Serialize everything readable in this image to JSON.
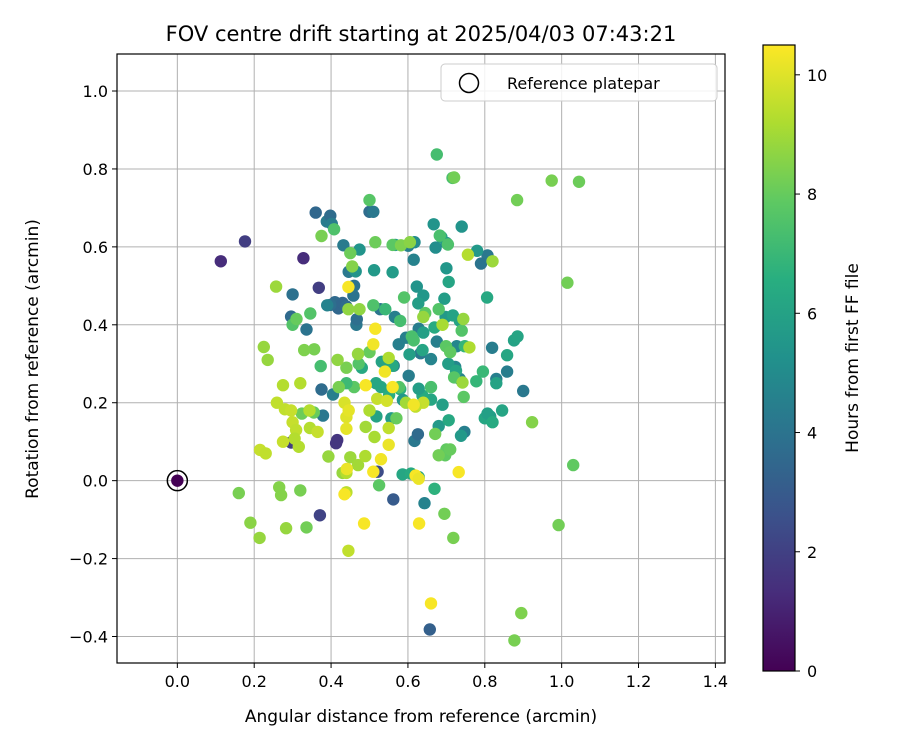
{
  "chart_data": {
    "type": "scatter",
    "title": "FOV centre drift starting at 2025/04/03 07:43:21",
    "xlabel": "Angular distance from reference (arcmin)",
    "ylabel": "Rotation from reference (arcmin)",
    "colorbar_label": "Hours from first FF file",
    "xlim": [
      -0.157,
      1.425
    ],
    "ylim": [
      -0.468,
      1.095
    ],
    "xticks": [
      0.0,
      0.2,
      0.4,
      0.6,
      0.8,
      1.0,
      1.2,
      1.4
    ],
    "yticks": [
      -0.4,
      -0.2,
      0.0,
      0.2,
      0.4,
      0.6,
      0.8,
      1.0
    ],
    "xtick_labels": [
      "0.0",
      "0.2",
      "0.4",
      "0.6",
      "0.8",
      "1.0",
      "1.2",
      "1.4"
    ],
    "ytick_labels": [
      "−0.4",
      "−0.2",
      "0.0",
      "0.2",
      "0.4",
      "0.6",
      "0.8",
      "1.0"
    ],
    "colorbar_range": [
      0,
      10.5
    ],
    "colorbar_ticks": [
      0,
      2,
      4,
      6,
      8,
      10
    ],
    "colorbar_tick_labels": [
      "0",
      "2",
      "4",
      "6",
      "8",
      "10"
    ],
    "colormap": "viridis",
    "grid": true,
    "legend": {
      "placement": "top-right",
      "entries": [
        "Reference platepar"
      ]
    },
    "reference_point": {
      "x": 0.0,
      "y": 0.0,
      "hours": 0.0
    },
    "points": [
      [
        0.113,
        0.563,
        1.3
      ],
      [
        0.176,
        0.614,
        1.9
      ],
      [
        0.328,
        0.571,
        1.3
      ],
      [
        0.368,
        0.495,
        1.9
      ],
      [
        0.296,
        0.098,
        1.9
      ],
      [
        0.371,
        -0.089,
        2.1
      ],
      [
        0.416,
        0.104,
        1.6
      ],
      [
        0.413,
        0.096,
        1.6
      ],
      [
        0.521,
        0.023,
        2.4
      ],
      [
        0.562,
        -0.048,
        3.0
      ],
      [
        0.657,
        -0.382,
        3.2
      ],
      [
        0.36,
        0.688,
        3.5
      ],
      [
        0.389,
        0.665,
        4.3
      ],
      [
        0.398,
        0.68,
        3.7
      ],
      [
        0.402,
        0.659,
        4.4
      ],
      [
        0.432,
        0.604,
        4.3
      ],
      [
        0.41,
        0.458,
        3.6
      ],
      [
        0.419,
        0.442,
        3.5
      ],
      [
        0.43,
        0.456,
        3.5
      ],
      [
        0.44,
        0.447,
        3.7
      ],
      [
        0.398,
        0.451,
        3.8
      ],
      [
        0.39,
        0.45,
        4.6
      ],
      [
        0.296,
        0.421,
        3.6
      ],
      [
        0.3,
        0.478,
        3.9
      ],
      [
        0.336,
        0.388,
        4.0
      ],
      [
        0.375,
        0.234,
        3.7
      ],
      [
        0.379,
        0.167,
        4.2
      ],
      [
        0.405,
        0.221,
        4.5
      ],
      [
        0.446,
        0.536,
        4.2
      ],
      [
        0.46,
        0.5,
        4.0
      ],
      [
        0.458,
        0.475,
        4.0
      ],
      [
        0.466,
        0.4,
        4.2
      ],
      [
        0.467,
        0.414,
        3.8
      ],
      [
        0.5,
        0.69,
        3.7
      ],
      [
        0.51,
        0.69,
        4.2
      ],
      [
        0.528,
        0.44,
        4.1
      ],
      [
        0.566,
        0.42,
        4.5
      ],
      [
        0.601,
        0.603,
        4.5
      ],
      [
        0.617,
        0.612,
        5.0
      ],
      [
        0.615,
        0.567,
        4.6
      ],
      [
        0.576,
        0.35,
        4.5
      ],
      [
        0.595,
        0.367,
        4.5
      ],
      [
        0.633,
        0.327,
        4.2
      ],
      [
        0.628,
        0.39,
        4.4
      ],
      [
        0.563,
        0.295,
        4.4
      ],
      [
        0.66,
        0.312,
        4.7
      ],
      [
        0.675,
        0.357,
        4.5
      ],
      [
        0.602,
        0.269,
        4.4
      ],
      [
        0.617,
        0.102,
        4.2
      ],
      [
        0.626,
        0.119,
        3.6
      ],
      [
        0.643,
        -0.058,
        4.6
      ],
      [
        0.727,
        0.345,
        4.8
      ],
      [
        0.735,
        0.261,
        4.7
      ],
      [
        0.723,
        0.292,
        4.8
      ],
      [
        0.807,
        0.578,
        4.2
      ],
      [
        0.79,
        0.557,
        4.0
      ],
      [
        0.819,
        0.341,
        4.4
      ],
      [
        0.83,
        0.261,
        4.5
      ],
      [
        0.9,
        0.23,
        4.2
      ],
      [
        0.858,
        0.28,
        4.4
      ],
      [
        0.7,
        0.61,
        4.9
      ],
      [
        0.747,
        0.125,
        4.5
      ],
      [
        0.474,
        0.593,
        5.4
      ],
      [
        0.464,
        0.537,
        5.4
      ],
      [
        0.512,
        0.54,
        5.6
      ],
      [
        0.56,
        0.535,
        5.7
      ],
      [
        0.567,
        0.605,
        5.8
      ],
      [
        0.623,
        0.498,
        5.4
      ],
      [
        0.64,
        0.475,
        5.5
      ],
      [
        0.627,
        0.455,
        5.8
      ],
      [
        0.64,
        0.38,
        5.9
      ],
      [
        0.667,
        0.658,
        5.4
      ],
      [
        0.687,
        0.625,
        6.2
      ],
      [
        0.672,
        0.598,
        5.1
      ],
      [
        0.703,
        0.607,
        5.4
      ],
      [
        0.74,
        0.652,
        5.4
      ],
      [
        0.7,
        0.545,
        5.5
      ],
      [
        0.706,
        0.51,
        6.1
      ],
      [
        0.695,
        0.467,
        5.8
      ],
      [
        0.698,
        0.42,
        5.6
      ],
      [
        0.705,
        0.3,
        5.8
      ],
      [
        0.725,
        0.282,
        6.1
      ],
      [
        0.717,
        0.424,
        6.0
      ],
      [
        0.735,
        0.41,
        6.0
      ],
      [
        0.69,
        0.195,
        5.9
      ],
      [
        0.68,
        0.14,
        5.6
      ],
      [
        0.706,
        0.155,
        6.3
      ],
      [
        0.738,
        0.115,
        5.6
      ],
      [
        0.66,
        0.208,
        6.2
      ],
      [
        0.638,
        0.218,
        6.4
      ],
      [
        0.628,
        0.236,
        5.8
      ],
      [
        0.58,
        0.235,
        6.6
      ],
      [
        0.587,
        0.207,
        5.5
      ],
      [
        0.551,
        0.22,
        6.5
      ],
      [
        0.557,
        0.16,
        5.7
      ],
      [
        0.517,
        0.25,
        6.2
      ],
      [
        0.518,
        0.165,
        6.0
      ],
      [
        0.532,
        0.305,
        6.0
      ],
      [
        0.53,
        0.24,
        6.2
      ],
      [
        0.48,
        0.29,
        6.3
      ],
      [
        0.56,
        0.295,
        6.3
      ],
      [
        0.604,
        0.324,
        5.9
      ],
      [
        0.638,
        0.335,
        6.1
      ],
      [
        0.669,
        0.393,
        6.4
      ],
      [
        0.586,
        0.016,
        6.2
      ],
      [
        0.608,
        0.018,
        6.4
      ],
      [
        0.628,
        0.009,
        6.1
      ],
      [
        0.669,
        -0.021,
        6.7
      ],
      [
        0.78,
        0.59,
        5.6
      ],
      [
        0.806,
        0.47,
        6.3
      ],
      [
        0.814,
        0.165,
        5.8
      ],
      [
        0.8,
        0.16,
        6.2
      ],
      [
        0.807,
        0.172,
        5.9
      ],
      [
        0.82,
        0.15,
        6.4
      ],
      [
        0.845,
        0.18,
        6.1
      ],
      [
        0.83,
        0.25,
        6.0
      ],
      [
        0.858,
        0.322,
        6.2
      ],
      [
        0.876,
        0.36,
        6.0
      ],
      [
        0.885,
        0.37,
        6.1
      ],
      [
        0.748,
        0.345,
        6.9
      ],
      [
        0.778,
        0.255,
        6.9
      ],
      [
        0.795,
        0.28,
        7.0
      ],
      [
        0.51,
        0.45,
        7.5
      ],
      [
        0.541,
        0.44,
        7.0
      ],
      [
        0.58,
        0.41,
        7.3
      ],
      [
        0.59,
        0.47,
        7.6
      ],
      [
        0.56,
        0.605,
        7.8
      ],
      [
        0.61,
        0.37,
        7.4
      ],
      [
        0.645,
        0.43,
        7.8
      ],
      [
        0.615,
        0.36,
        7.4
      ],
      [
        0.68,
        0.44,
        7.6
      ],
      [
        0.675,
        0.837,
        7.3
      ],
      [
        0.716,
        0.777,
        7.4
      ],
      [
        0.683,
        0.629,
        7.4
      ],
      [
        0.704,
        0.606,
        7.5
      ],
      [
        0.66,
        0.24,
        7.4
      ],
      [
        0.699,
        0.345,
        7.8
      ],
      [
        0.71,
        0.33,
        7.9
      ],
      [
        0.72,
        0.265,
        7.7
      ],
      [
        0.74,
        0.385,
        7.6
      ],
      [
        0.745,
        0.215,
        7.8
      ],
      [
        0.7,
        0.08,
        7.9
      ],
      [
        0.695,
        -0.085,
        8.2
      ],
      [
        0.718,
        -0.147,
        8.3
      ],
      [
        0.697,
        0.065,
        7.9
      ],
      [
        0.71,
        0.08,
        8.0
      ],
      [
        0.68,
        0.065,
        8.2
      ],
      [
        0.671,
        0.12,
        8.2
      ],
      [
        0.525,
        -0.012,
        7.8
      ],
      [
        0.57,
        0.16,
        8.0
      ],
      [
        0.577,
        0.24,
        7.6
      ],
      [
        0.5,
        0.33,
        8.0
      ],
      [
        0.472,
        0.3,
        7.6
      ],
      [
        0.46,
        0.24,
        7.8
      ],
      [
        0.44,
        0.25,
        7.1
      ],
      [
        0.44,
        0.29,
        8.3
      ],
      [
        0.42,
        0.24,
        8.3
      ],
      [
        0.373,
        0.294,
        7.3
      ],
      [
        0.356,
        0.337,
        8.3
      ],
      [
        0.346,
        0.429,
        7.6
      ],
      [
        0.33,
        0.335,
        8.4
      ],
      [
        0.3,
        0.4,
        7.6
      ],
      [
        0.31,
        0.415,
        8.0
      ],
      [
        0.324,
        0.172,
        8.1
      ],
      [
        0.355,
        0.175,
        8.0
      ],
      [
        0.32,
        -0.025,
        8.3
      ],
      [
        0.336,
        -0.12,
        8.2
      ],
      [
        0.265,
        -0.017,
        8.5
      ],
      [
        0.27,
        -0.037,
        8.5
      ],
      [
        0.16,
        -0.032,
        8.3
      ],
      [
        0.19,
        -0.108,
        8.6
      ],
      [
        0.214,
        -0.147,
        8.8
      ],
      [
        0.283,
        -0.122,
        8.8
      ],
      [
        0.408,
        0.645,
        7.5
      ],
      [
        0.375,
        0.628,
        8.3
      ],
      [
        0.45,
        0.584,
        8.1
      ],
      [
        0.515,
        0.612,
        8.1
      ],
      [
        0.5,
        0.72,
        7.7
      ],
      [
        0.582,
        0.604,
        8.4
      ],
      [
        0.605,
        0.612,
        8.6
      ],
      [
        0.72,
        0.778,
        8.2
      ],
      [
        0.884,
        0.72,
        8.2
      ],
      [
        0.974,
        0.77,
        8.3
      ],
      [
        1.045,
        0.767,
        8.1
      ],
      [
        1.015,
        0.508,
        8.2
      ],
      [
        1.03,
        0.04,
        7.9
      ],
      [
        0.992,
        -0.114,
        8.2
      ],
      [
        0.923,
        0.15,
        8.5
      ],
      [
        0.895,
        -0.34,
        8.4
      ],
      [
        0.877,
        -0.41,
        8.3
      ],
      [
        0.756,
        0.58,
        9.3
      ],
      [
        0.82,
        0.563,
        8.9
      ],
      [
        0.744,
        0.415,
        8.8
      ],
      [
        0.76,
        0.342,
        9.2
      ],
      [
        0.742,
        0.252,
        8.9
      ],
      [
        0.64,
        0.42,
        8.8
      ],
      [
        0.69,
        0.4,
        9.1
      ],
      [
        0.55,
        0.315,
        9.2
      ],
      [
        0.455,
        0.55,
        8.5
      ],
      [
        0.474,
        0.44,
        8.7
      ],
      [
        0.445,
        0.44,
        8.7
      ],
      [
        0.47,
        0.325,
        8.8
      ],
      [
        0.417,
        0.31,
        8.7
      ],
      [
        0.393,
        0.062,
        8.8
      ],
      [
        0.43,
        0.02,
        8.8
      ],
      [
        0.45,
        0.06,
        8.9
      ],
      [
        0.47,
        0.04,
        9.0
      ],
      [
        0.44,
        0.02,
        9.3
      ],
      [
        0.44,
        -0.03,
        9.4
      ],
      [
        0.489,
        0.063,
        9.2
      ],
      [
        0.49,
        0.138,
        9.0
      ],
      [
        0.513,
        0.112,
        9.1
      ],
      [
        0.52,
        0.21,
        9.6
      ],
      [
        0.5,
        0.18,
        9.2
      ],
      [
        0.545,
        0.205,
        9.8
      ],
      [
        0.595,
        0.2,
        9.0
      ],
      [
        0.64,
        0.2,
        9.6
      ],
      [
        0.62,
        0.19,
        9.5
      ],
      [
        0.55,
        0.135,
        9.5
      ],
      [
        0.257,
        0.498,
        8.9
      ],
      [
        0.225,
        0.343,
        8.8
      ],
      [
        0.235,
        0.31,
        8.8
      ],
      [
        0.259,
        0.2,
        9.5
      ],
      [
        0.275,
        0.245,
        9.3
      ],
      [
        0.28,
        0.183,
        9.5
      ],
      [
        0.296,
        0.18,
        9.6
      ],
      [
        0.3,
        0.15,
        9.6
      ],
      [
        0.309,
        0.13,
        9.5
      ],
      [
        0.305,
        0.108,
        9.3
      ],
      [
        0.316,
        0.087,
        9.3
      ],
      [
        0.215,
        0.079,
        9.6
      ],
      [
        0.23,
        0.07,
        9.5
      ],
      [
        0.275,
        0.1,
        9.6
      ],
      [
        0.345,
        0.135,
        9.3
      ],
      [
        0.344,
        0.18,
        9.3
      ],
      [
        0.365,
        0.125,
        9.6
      ],
      [
        0.32,
        0.25,
        9.3
      ],
      [
        0.435,
        0.2,
        9.9
      ],
      [
        0.44,
        0.163,
        10.0
      ],
      [
        0.446,
        0.18,
        10.1
      ],
      [
        0.44,
        0.133,
        10.1
      ],
      [
        0.441,
        0.03,
        10.2
      ],
      [
        0.435,
        -0.035,
        10.4
      ],
      [
        0.445,
        -0.18,
        9.5
      ],
      [
        0.486,
        -0.11,
        10.4
      ],
      [
        0.445,
        0.497,
        10.4
      ],
      [
        0.49,
        0.245,
        10.4
      ],
      [
        0.51,
        0.35,
        10.3
      ],
      [
        0.515,
        0.39,
        10.4
      ],
      [
        0.54,
        0.28,
        10.3
      ],
      [
        0.56,
        0.24,
        10.4
      ],
      [
        0.55,
        0.092,
        10.2
      ],
      [
        0.53,
        0.055,
        10.3
      ],
      [
        0.51,
        0.023,
        10.4
      ],
      [
        0.615,
        0.195,
        10.3
      ],
      [
        0.62,
        0.013,
        10.4
      ],
      [
        0.628,
        0.005,
        10.2
      ],
      [
        0.629,
        -0.11,
        10.4
      ],
      [
        0.66,
        -0.315,
        10.4
      ],
      [
        0.732,
        0.022,
        10.4
      ]
    ]
  }
}
